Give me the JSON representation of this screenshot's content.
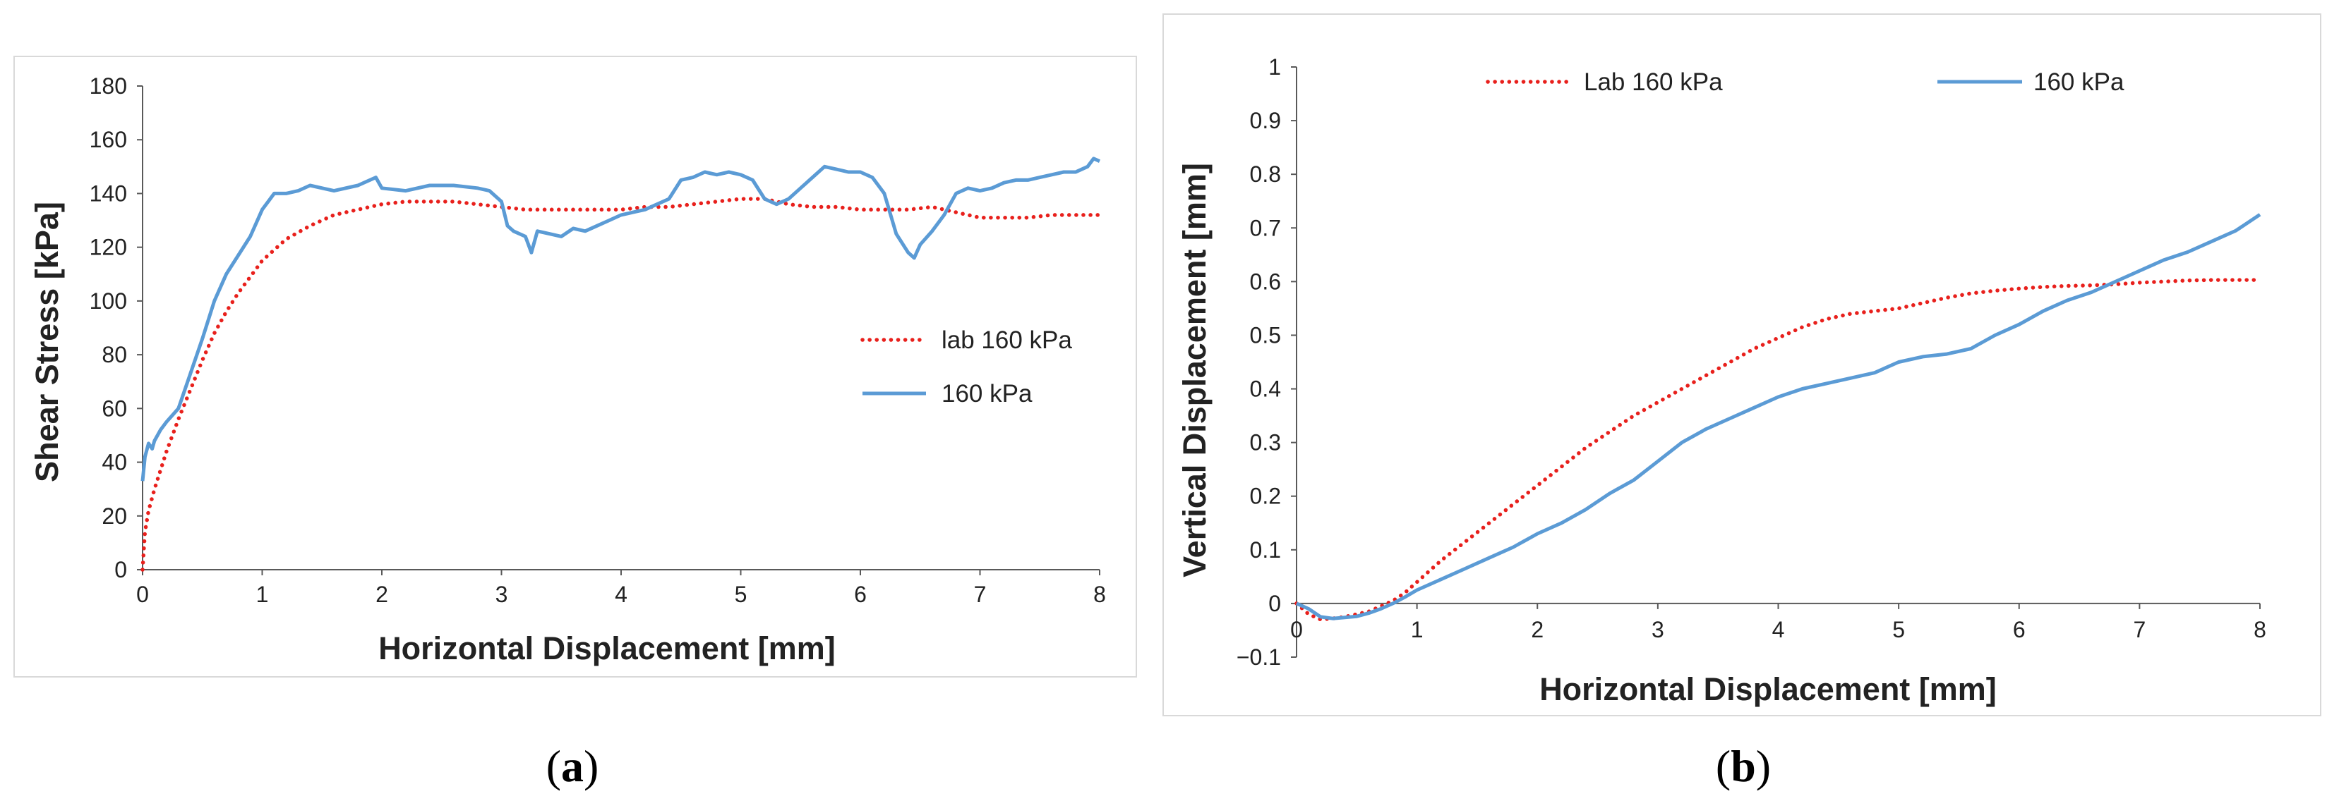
{
  "chart_data": [
    {
      "type": "line",
      "caption_open": "(",
      "caption_letter": "a",
      "caption_close": ")",
      "title": "",
      "xlabel": "Horizontal Displacement [mm]",
      "ylabel": "Shear Stress [kPa]",
      "xlim": [
        0,
        8
      ],
      "ylim": [
        0,
        180
      ],
      "xticks": [
        "0",
        "1",
        "2",
        "3",
        "4",
        "5",
        "6",
        "7",
        "8"
      ],
      "yticks": [
        "0",
        "20",
        "40",
        "60",
        "80",
        "100",
        "120",
        "140",
        "160",
        "180"
      ],
      "grid": false,
      "legend_position": "right",
      "series": [
        {
          "name": "lab 160 kPa",
          "style": "dotted",
          "color": "#e8201c",
          "x": [
            0,
            0.02,
            0.05,
            0.1,
            0.2,
            0.3,
            0.4,
            0.5,
            0.6,
            0.7,
            0.8,
            0.9,
            1.0,
            1.2,
            1.4,
            1.6,
            1.8,
            2.0,
            2.2,
            2.4,
            2.6,
            2.8,
            3.0,
            3.2,
            3.4,
            3.6,
            3.8,
            4.0,
            4.2,
            4.4,
            4.6,
            4.8,
            5.0,
            5.2,
            5.4,
            5.6,
            5.8,
            6.0,
            6.2,
            6.4,
            6.6,
            6.8,
            7.0,
            7.2,
            7.4,
            7.6,
            7.8,
            8.0
          ],
          "y": [
            0,
            14,
            22,
            30,
            44,
            56,
            67,
            78,
            88,
            96,
            103,
            109,
            115,
            123,
            128,
            132,
            134,
            136,
            137,
            137,
            137,
            136,
            135,
            134,
            134,
            134,
            134,
            134,
            135,
            135,
            136,
            137,
            138,
            138,
            136,
            135,
            135,
            134,
            134,
            134,
            135,
            133,
            131,
            131,
            131,
            132,
            132,
            132
          ]
        },
        {
          "name": "160 kPa",
          "style": "solid",
          "color": "#5b9bd5",
          "x": [
            0,
            0.02,
            0.05,
            0.08,
            0.1,
            0.15,
            0.2,
            0.3,
            0.4,
            0.5,
            0.6,
            0.7,
            0.8,
            0.9,
            1.0,
            1.1,
            1.2,
            1.3,
            1.4,
            1.5,
            1.6,
            1.8,
            1.95,
            2.0,
            2.2,
            2.4,
            2.6,
            2.8,
            2.9,
            3.0,
            3.05,
            3.1,
            3.2,
            3.25,
            3.3,
            3.4,
            3.5,
            3.6,
            3.7,
            3.8,
            3.9,
            4.0,
            4.1,
            4.2,
            4.3,
            4.4,
            4.5,
            4.6,
            4.7,
            4.8,
            4.9,
            5.0,
            5.1,
            5.2,
            5.3,
            5.4,
            5.5,
            5.6,
            5.7,
            5.8,
            5.9,
            6.0,
            6.1,
            6.2,
            6.3,
            6.4,
            6.45,
            6.5,
            6.6,
            6.7,
            6.8,
            6.9,
            7.0,
            7.1,
            7.2,
            7.3,
            7.4,
            7.5,
            7.6,
            7.7,
            7.8,
            7.9,
            7.95,
            8.0
          ],
          "y": [
            33,
            42,
            47,
            45,
            48,
            52,
            55,
            60,
            73,
            86,
            100,
            110,
            117,
            124,
            134,
            140,
            140,
            141,
            143,
            142,
            141,
            143,
            146,
            142,
            141,
            143,
            143,
            142,
            141,
            137,
            128,
            126,
            124,
            118,
            126,
            125,
            124,
            127,
            126,
            128,
            130,
            132,
            133,
            134,
            136,
            138,
            145,
            146,
            148,
            147,
            148,
            147,
            145,
            138,
            136,
            138,
            142,
            146,
            150,
            149,
            148,
            148,
            146,
            140,
            125,
            118,
            116,
            121,
            126,
            132,
            140,
            142,
            141,
            142,
            144,
            145,
            145,
            146,
            147,
            148,
            148,
            150,
            153,
            152
          ]
        }
      ]
    },
    {
      "type": "line",
      "caption_open": "(",
      "caption_letter": "b",
      "caption_close": ")",
      "title": "",
      "xlabel": "Horizontal Displacement [mm]",
      "ylabel": "Vertical Displacement [mm]",
      "xlim": [
        0,
        8
      ],
      "ylim": [
        -0.1,
        1
      ],
      "xticks": [
        "0",
        "1",
        "2",
        "3",
        "4",
        "5",
        "6",
        "7",
        "8"
      ],
      "yticks": [
        "−0.1",
        "0",
        "0.1",
        "0.2",
        "0.3",
        "0.4",
        "0.5",
        "0.6",
        "0.7",
        "0.8",
        "0.9",
        "1"
      ],
      "grid": false,
      "legend_position": "top",
      "series": [
        {
          "name": "Lab 160 kPa",
          "style": "dotted",
          "color": "#e8201c",
          "x": [
            0,
            0.1,
            0.2,
            0.3,
            0.4,
            0.5,
            0.6,
            0.7,
            0.8,
            0.9,
            1.0,
            1.2,
            1.4,
            1.6,
            1.8,
            2.0,
            2.2,
            2.4,
            2.6,
            2.8,
            3.0,
            3.2,
            3.4,
            3.6,
            3.8,
            4.0,
            4.2,
            4.4,
            4.6,
            4.8,
            5.0,
            5.2,
            5.4,
            5.6,
            5.8,
            6.0,
            6.2,
            6.4,
            6.6,
            6.8,
            7.0,
            7.2,
            7.4,
            7.6,
            7.8,
            8.0
          ],
          "y": [
            0,
            -0.02,
            -0.03,
            -0.028,
            -0.025,
            -0.02,
            -0.015,
            -0.005,
            0.005,
            0.02,
            0.04,
            0.08,
            0.115,
            0.15,
            0.185,
            0.22,
            0.255,
            0.29,
            0.32,
            0.35,
            0.375,
            0.4,
            0.425,
            0.45,
            0.475,
            0.495,
            0.515,
            0.53,
            0.54,
            0.545,
            0.55,
            0.56,
            0.57,
            0.578,
            0.583,
            0.587,
            0.59,
            0.592,
            0.593,
            0.595,
            0.598,
            0.6,
            0.602,
            0.603,
            0.603,
            0.603
          ]
        },
        {
          "name": "160 kPa",
          "style": "solid",
          "color": "#5b9bd5",
          "x": [
            0,
            0.1,
            0.2,
            0.3,
            0.4,
            0.5,
            0.6,
            0.7,
            0.8,
            0.9,
            1.0,
            1.2,
            1.4,
            1.6,
            1.8,
            2.0,
            2.2,
            2.4,
            2.6,
            2.8,
            3.0,
            3.2,
            3.4,
            3.6,
            3.8,
            4.0,
            4.2,
            4.4,
            4.6,
            4.8,
            5.0,
            5.2,
            5.4,
            5.6,
            5.8,
            6.0,
            6.2,
            6.4,
            6.6,
            6.8,
            7.0,
            7.2,
            7.4,
            7.6,
            7.8,
            8.0
          ],
          "y": [
            0,
            -0.01,
            -0.025,
            -0.028,
            -0.026,
            -0.024,
            -0.018,
            -0.01,
            0.0,
            0.012,
            0.025,
            0.045,
            0.065,
            0.085,
            0.105,
            0.13,
            0.15,
            0.175,
            0.205,
            0.23,
            0.265,
            0.3,
            0.325,
            0.345,
            0.365,
            0.385,
            0.4,
            0.41,
            0.42,
            0.43,
            0.45,
            0.46,
            0.465,
            0.475,
            0.5,
            0.52,
            0.545,
            0.565,
            0.58,
            0.6,
            0.62,
            0.64,
            0.655,
            0.675,
            0.695,
            0.725
          ]
        }
      ]
    }
  ]
}
